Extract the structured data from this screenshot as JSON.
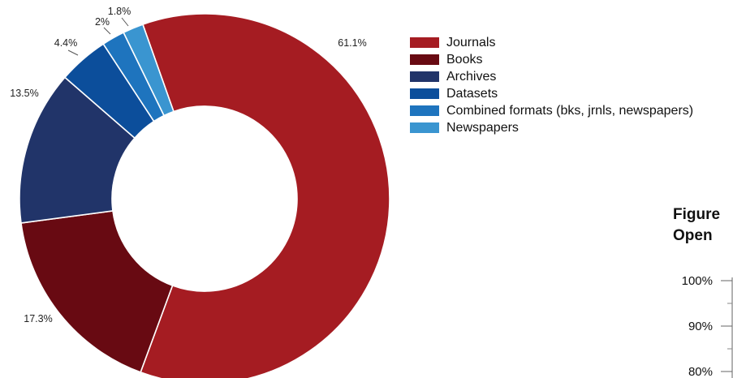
{
  "chart_data": [
    {
      "type": "pie",
      "variant": "donut",
      "title": "",
      "categories": [
        "Journals",
        "Books",
        "Archives",
        "Datasets",
        "Combined formats (bks, jrnls, newspapers)",
        "Newspapers"
      ],
      "values": [
        61.1,
        17.3,
        13.5,
        4.4,
        2.0,
        1.8
      ],
      "labels": [
        "61.1%",
        "17.3%",
        "13.5%",
        "4.4%",
        "2%",
        "1.8%"
      ],
      "colors": [
        "#A51C22",
        "#680A12",
        "#213469",
        "#0C4E9B",
        "#1E74BE",
        "#3A95D0"
      ],
      "legend": "right"
    },
    {
      "type": "bar",
      "partial": true,
      "title": "Figure",
      "subtitle": "Open",
      "yticks": [
        "100%",
        "90%",
        "80%"
      ]
    }
  ]
}
